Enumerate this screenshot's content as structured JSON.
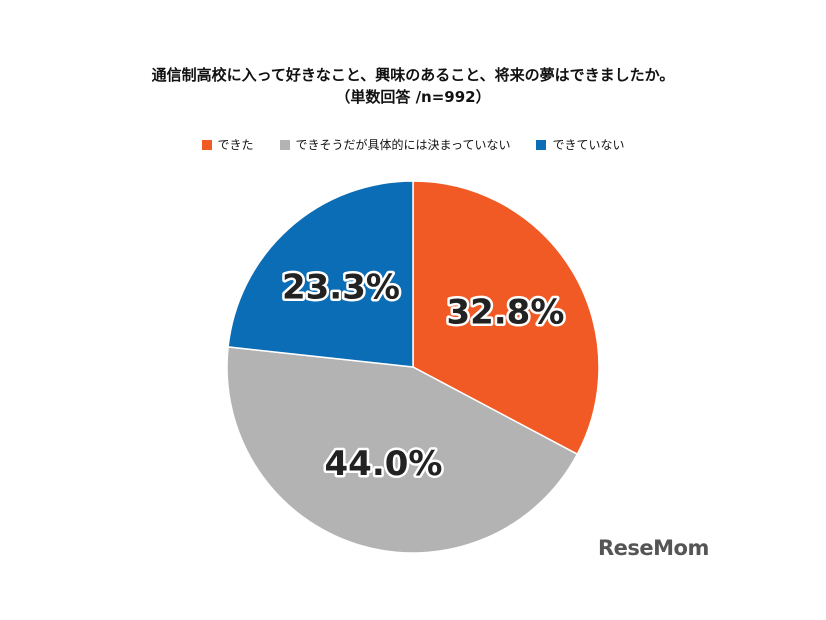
{
  "title_line1": "通信制高校に入って好きなこと、興味のあること、将来の夢はできましたか。",
  "title_line2": "（単数回答 /n=992）",
  "logo_text": "ReseMom",
  "chart_data": {
    "type": "pie",
    "start": "top, clockwise",
    "slices": [
      {
        "name": "できた",
        "value": 32.8,
        "label": "32.8%",
        "color": "#F15A24"
      },
      {
        "name": "できそうだが具体的には決まっていない",
        "value": 44.0,
        "label": "44.0%",
        "color": "#B3B3B3"
      },
      {
        "name": "できていない",
        "value": 23.3,
        "label": "23.3%",
        "color": "#0B6DB6"
      }
    ],
    "legend_position": "top"
  }
}
